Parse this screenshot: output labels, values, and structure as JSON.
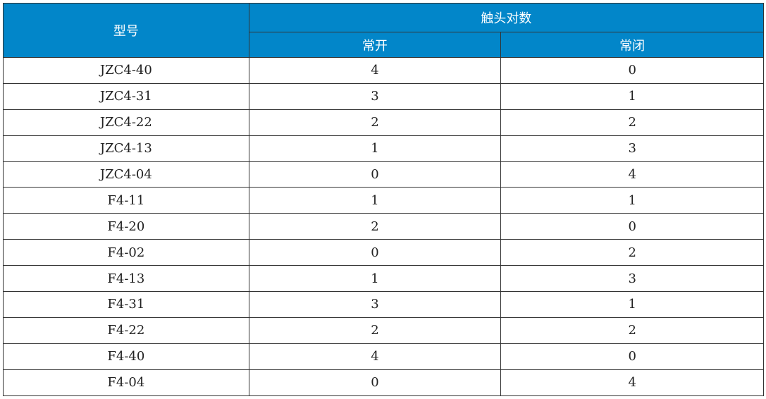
{
  "header": {
    "model": "型号",
    "contacts": "触头对数",
    "no": "常开",
    "nc": "常闭"
  },
  "header_color": "#0286c9",
  "rows": [
    [
      "JZC4-40",
      "4",
      "0"
    ],
    [
      "JZC4-31",
      "3",
      "1"
    ],
    [
      "JZC4-22",
      "2",
      "2"
    ],
    [
      "JZC4-13",
      "1",
      "3"
    ],
    [
      "JZC4-04",
      "0",
      "4"
    ],
    [
      "F4-11",
      "1",
      "1"
    ],
    [
      "F4-20",
      "2",
      "0"
    ],
    [
      "F4-02",
      "0",
      "2"
    ],
    [
      "F4-13",
      "1",
      "3"
    ],
    [
      "F4-31",
      "3",
      "1"
    ],
    [
      "F4-22",
      "2",
      "2"
    ],
    [
      "F4-40",
      "4",
      "0"
    ],
    [
      "F4-04",
      "0",
      "4"
    ]
  ]
}
